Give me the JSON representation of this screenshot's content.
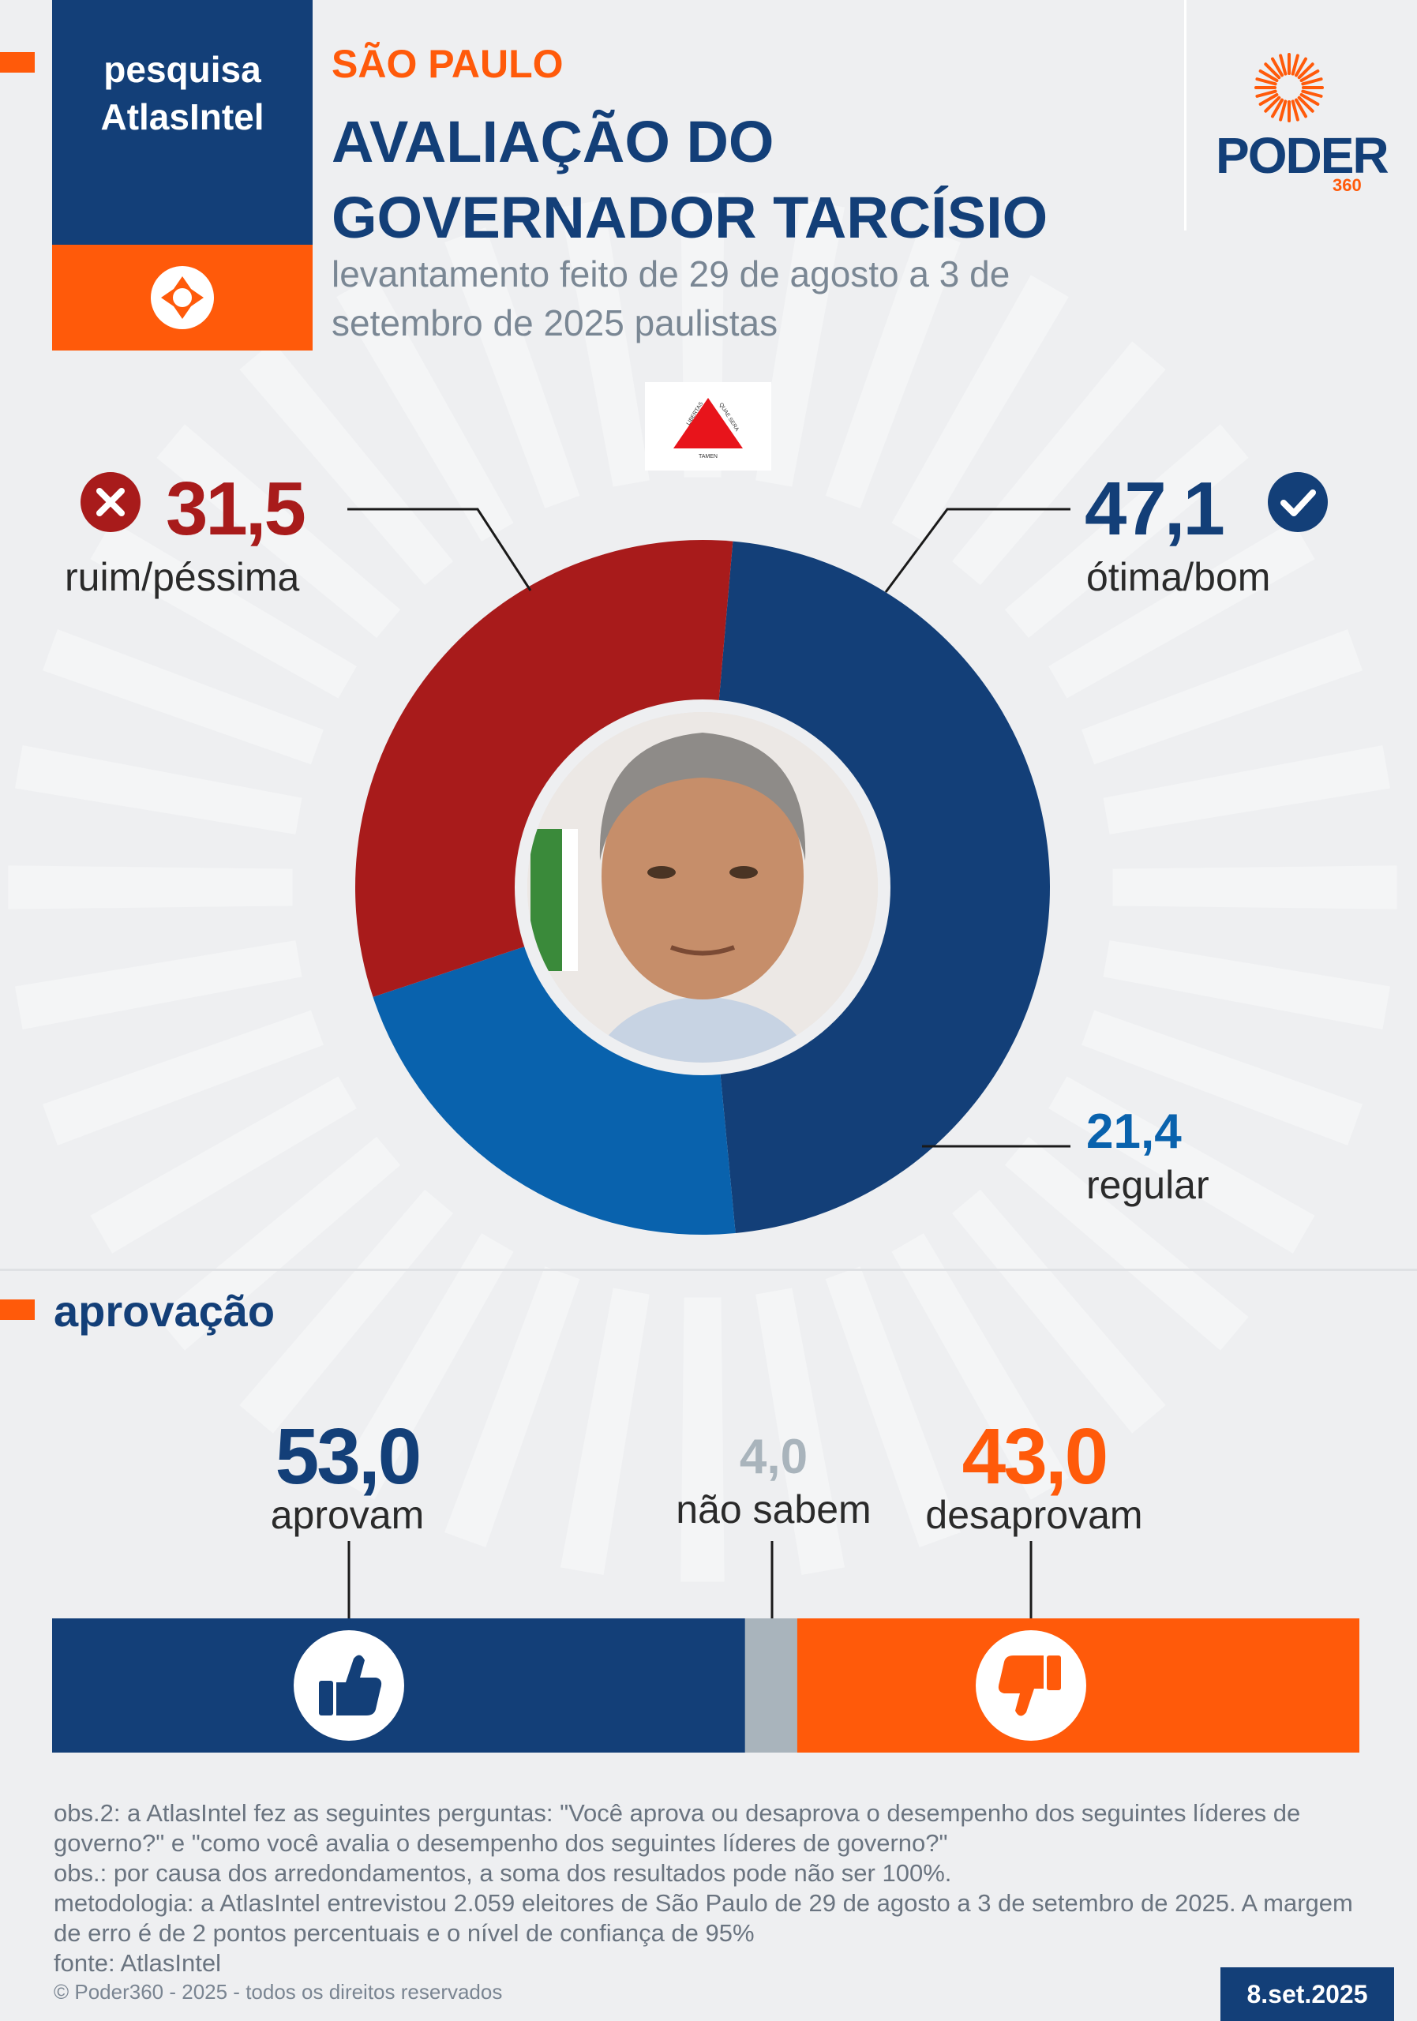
{
  "header": {
    "brand_line1": "pesquisa",
    "brand_line2": "AtlasIntel",
    "region": "SÃO PAULO",
    "title_line1": "AVALIAÇÃO DO",
    "title_line2": "GOVERNADOR TARCÍSIO",
    "subtitle_line1": "levantamento feito de 29 de agosto a 3 de",
    "subtitle_line2": "setembro de 2025 paulistas",
    "publisher": "PODER",
    "publisher_sub": "360"
  },
  "colors": {
    "navy": "#133f78",
    "orange": "#ff5a0a",
    "red": "#a81b1b",
    "blue": "#0962ad",
    "gray": "#a9b4bc"
  },
  "evaluation": {
    "bad": {
      "value": "31,5",
      "label": "ruim/péssima"
    },
    "good": {
      "value": "47,1",
      "label": "ótima/bom"
    },
    "regular": {
      "value": "21,4",
      "label": "regular"
    }
  },
  "approval": {
    "section_title": "aprovação",
    "approve": {
      "value": "53,0",
      "label": "aprovam"
    },
    "dont_know": {
      "value": "4,0",
      "label": "não sabem"
    },
    "disapprove": {
      "value": "43,0",
      "label": "desaprovam"
    }
  },
  "chart_data": [
    {
      "type": "pie",
      "title": "AVALIAÇÃO DO GOVERNADOR TARCÍSIO",
      "categories": [
        "ótima/bom",
        "regular",
        "ruim/péssima"
      ],
      "values": [
        47.1,
        21.4,
        31.5
      ],
      "colors": [
        "#133f78",
        "#0962ad",
        "#a81b1b"
      ],
      "donut": true
    },
    {
      "type": "bar",
      "orientation": "horizontal-stacked",
      "title": "aprovação",
      "categories": [
        "aprovam",
        "não sabem",
        "desaprovam"
      ],
      "values": [
        53.0,
        4.0,
        43.0
      ],
      "colors": [
        "#133f78",
        "#a9b4bc",
        "#ff5a0a"
      ]
    }
  ],
  "notes": {
    "obs2": "obs.2: a AtlasIntel fez as seguintes perguntas: \"Você aprova ou desaprova o desempenho dos seguintes líderes de governo?\" e \"como você avalia o desempenho dos seguintes líderes de governo?\"",
    "obs": "obs.: por causa dos arredondamentos, a soma dos resultados pode não ser 100%.",
    "methodology": "metodologia: a AtlasIntel entrevistou 2.059 eleitores de São Paulo de 29 de agosto a 3 de setembro de 2025. A margem de erro é de 2 pontos percentuais e o nível de confiança de 95%",
    "source": "fonte: AtlasIntel"
  },
  "footer": {
    "copyright": "© Poder360 - 2025 - todos os direitos reservados",
    "date": "8.set.2025"
  }
}
